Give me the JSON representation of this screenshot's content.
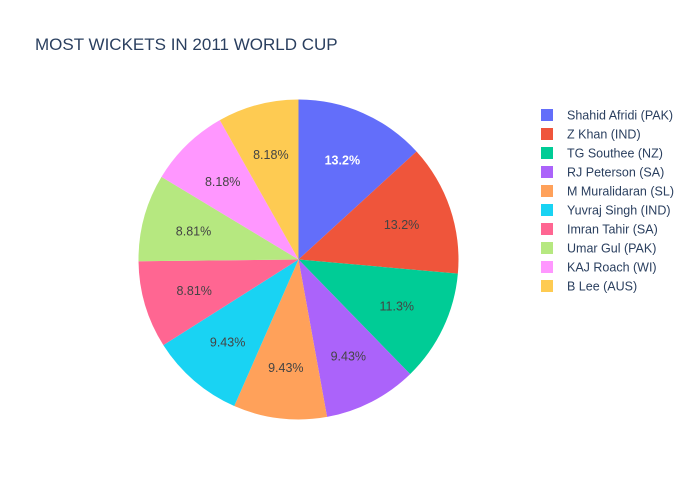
{
  "chart_data": {
    "type": "pie",
    "title": "MOST WICKETS IN 2011 WORLD CUP",
    "legend_position": "right",
    "slices": [
      {
        "label": "Shahid Afridi (PAK)",
        "percent": 13.2,
        "percent_label": "13.2%",
        "color": "#636efa",
        "label_color": "#ffffff",
        "label_bold": true
      },
      {
        "label": "Z Khan (IND)",
        "percent": 13.2,
        "percent_label": "13.2%",
        "color": "#ef553b",
        "label_color": "#444444",
        "label_bold": false
      },
      {
        "label": "TG Southee (NZ)",
        "percent": 11.3,
        "percent_label": "11.3%",
        "color": "#00cc96",
        "label_color": "#444444",
        "label_bold": false
      },
      {
        "label": "RJ Peterson (SA)",
        "percent": 9.43,
        "percent_label": "9.43%",
        "color": "#ab63fa",
        "label_color": "#444444",
        "label_bold": false
      },
      {
        "label": "M Muralidaran (SL)",
        "percent": 9.43,
        "percent_label": "9.43%",
        "color": "#ffa15a",
        "label_color": "#444444",
        "label_bold": false
      },
      {
        "label": "Yuvraj Singh (IND)",
        "percent": 9.43,
        "percent_label": "9.43%",
        "color": "#19d3f3",
        "label_color": "#444444",
        "label_bold": false
      },
      {
        "label": "Imran Tahir (SA)",
        "percent": 8.81,
        "percent_label": "8.81%",
        "color": "#ff6692",
        "label_color": "#444444",
        "label_bold": false
      },
      {
        "label": "Umar Gul (PAK)",
        "percent": 8.81,
        "percent_label": "8.81%",
        "color": "#b6e880",
        "label_color": "#444444",
        "label_bold": false
      },
      {
        "label": "KAJ Roach (WI)",
        "percent": 8.18,
        "percent_label": "8.18%",
        "color": "#ff97ff",
        "label_color": "#444444",
        "label_bold": false
      },
      {
        "label": "B Lee (AUS)",
        "percent": 8.18,
        "percent_label": "8.18%",
        "color": "#fecb52",
        "label_color": "#444444",
        "label_bold": false
      }
    ]
  }
}
